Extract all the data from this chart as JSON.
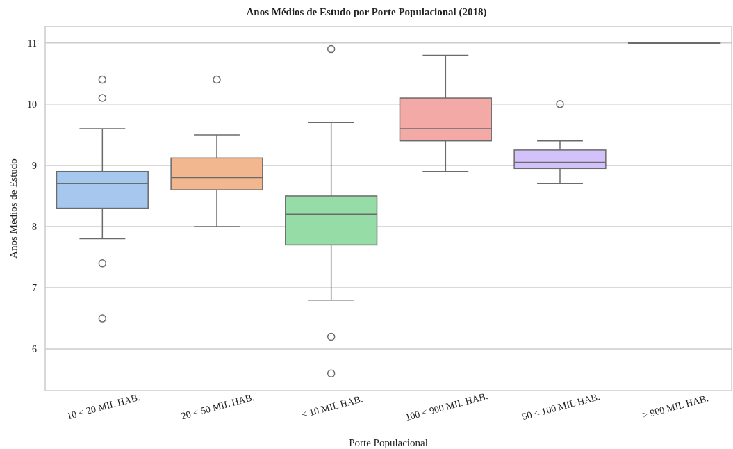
{
  "chart_data": {
    "type": "box",
    "title": "Anos Médios de Estudo por Porte Populacional (2018)",
    "xlabel": "Porte Populacional",
    "ylabel": "Anos Médios de Estudo",
    "categories": [
      "10 < 20 MIL HAB.",
      "20 < 50 MIL HAB.",
      "< 10 MIL HAB.",
      "100 < 900 MIL HAB.",
      "50 < 100 MIL HAB.",
      "> 900 MIL HAB."
    ],
    "colors": [
      "#a6c8ef",
      "#f2b78e",
      "#95dca6",
      "#f3a9a6",
      "#d3c2fa",
      "#d8bfa0"
    ],
    "boxes": [
      {
        "low": 7.8,
        "q1": 8.3,
        "median": 8.7,
        "q3": 8.9,
        "high": 9.6,
        "outliers": [
          10.4,
          10.1,
          7.4,
          6.5
        ]
      },
      {
        "low": 8.0,
        "q1": 8.6,
        "median": 8.8,
        "q3": 9.12,
        "high": 9.5,
        "outliers": [
          10.4
        ]
      },
      {
        "low": 6.8,
        "q1": 7.7,
        "median": 8.2,
        "q3": 8.5,
        "high": 9.7,
        "outliers": [
          10.9,
          6.2,
          5.6
        ]
      },
      {
        "low": 8.9,
        "q1": 9.4,
        "median": 9.6,
        "q3": 10.1,
        "high": 10.8
      },
      {
        "low": 8.7,
        "q1": 8.95,
        "median": 9.05,
        "q3": 9.25,
        "high": 9.4,
        "outliers": [
          10.0
        ]
      },
      {
        "low": 11,
        "q1": 11,
        "median": 11,
        "q3": 11,
        "high": 11
      }
    ],
    "ylim": [
      5.32,
      11.27
    ],
    "yticks": [
      6,
      7,
      8,
      9,
      10,
      11
    ],
    "grid": "y",
    "marker": "circle"
  }
}
